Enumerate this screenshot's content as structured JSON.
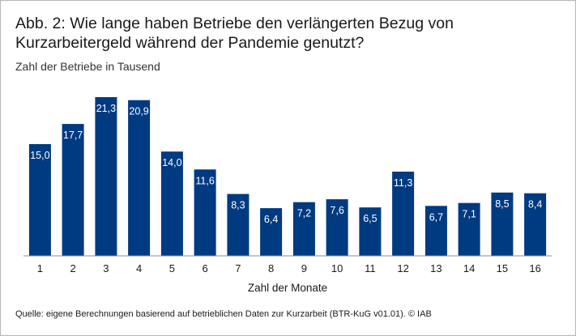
{
  "chart_data": {
    "type": "bar",
    "title": "Abb. 2: Wie lange haben Betriebe den verlängerten Bezug von Kurzarbeitergeld während der Pandemie genutzt?",
    "ylabel": "Zahl der Betriebe in Tausend",
    "xlabel": "Zahl der Monate",
    "categories": [
      "1",
      "2",
      "3",
      "4",
      "5",
      "6",
      "7",
      "8",
      "9",
      "10",
      "11",
      "12",
      "13",
      "14",
      "15",
      "16"
    ],
    "values": [
      15.0,
      17.7,
      21.3,
      20.9,
      14.0,
      11.6,
      8.3,
      6.4,
      7.2,
      7.6,
      6.5,
      11.3,
      6.7,
      7.1,
      8.5,
      8.4
    ],
    "value_labels": [
      "15,0",
      "17,7",
      "21,3",
      "20,9",
      "14,0",
      "11,6",
      "8,3",
      "6,4",
      "7,2",
      "7,6",
      "6,5",
      "11,3",
      "6,7",
      "7,1",
      "8,5",
      "8,4"
    ],
    "ylim": [
      0,
      21.3
    ],
    "grid": false,
    "bar_color": "#003a80"
  },
  "source": "Quelle: eigene Berechnungen basierend auf betrieblichen Daten zur Kurzarbeit (BTR-KuG v01.01).  © IAB"
}
